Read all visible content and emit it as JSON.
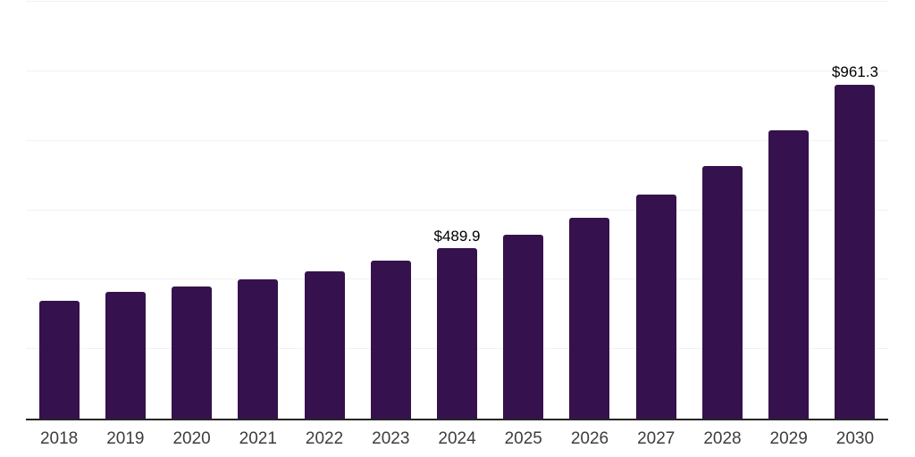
{
  "chart_data": {
    "type": "bar",
    "title": "",
    "xlabel": "",
    "ylabel": "",
    "categories": [
      "2018",
      "2019",
      "2020",
      "2021",
      "2022",
      "2023",
      "2024",
      "2025",
      "2026",
      "2027",
      "2028",
      "2029",
      "2030"
    ],
    "values": [
      338,
      366,
      381,
      402,
      425,
      454,
      489.9,
      529,
      579,
      645,
      727,
      829,
      961.3
    ],
    "value_labels": [
      "",
      "",
      "",
      "",
      "",
      "",
      "$489.9",
      "",
      "",
      "",
      "",
      "",
      "$961.3"
    ],
    "ylim": [
      0,
      1200
    ],
    "gridline_step": 200,
    "grid": true,
    "legend": false,
    "y_tick_labels_visible": false,
    "colors": {
      "bar": "#35114d",
      "gridline": "#f2f2f2",
      "axis_line": "#262626",
      "value_label": "#000000",
      "tick_label": "#3d3d3d",
      "background": "#ffffff"
    }
  }
}
